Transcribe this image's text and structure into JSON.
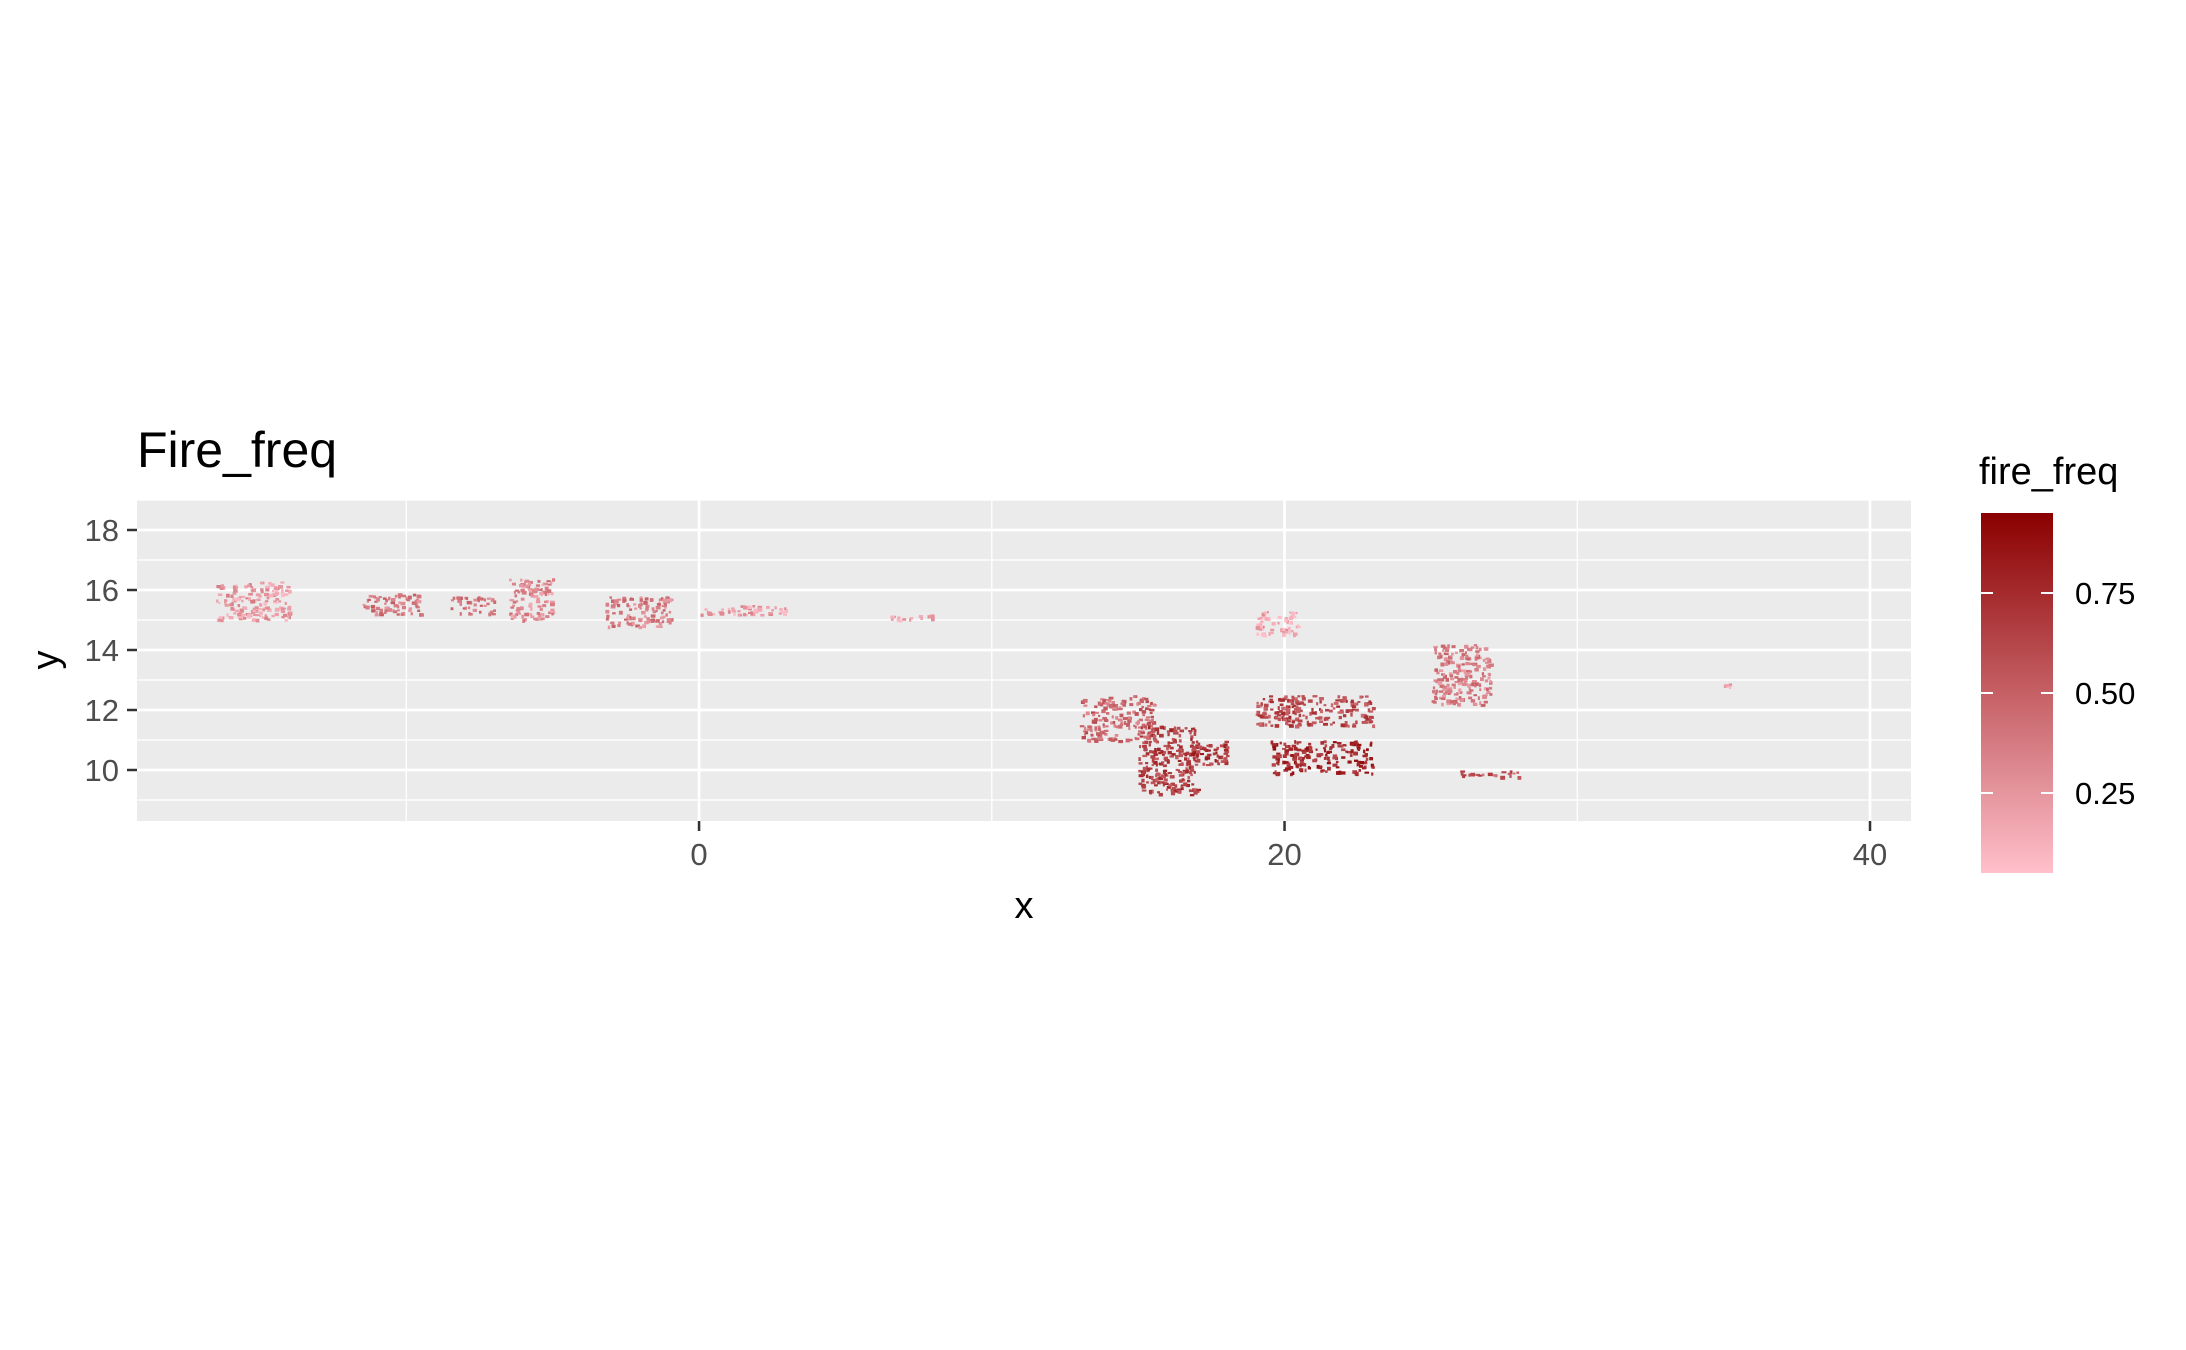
{
  "chart_data": {
    "type": "heatmap",
    "title": "Fire_freq",
    "xlabel": "x",
    "ylabel": "y",
    "xlim": [
      -19.2,
      41.4
    ],
    "ylim": [
      8.3,
      19.0
    ],
    "x_ticks": [
      0,
      20,
      40
    ],
    "x_tick_labels": [
      "0",
      "20",
      "40"
    ],
    "y_ticks": [
      10,
      12,
      14,
      16,
      18
    ],
    "y_tick_labels": [
      "10",
      "12",
      "14",
      "16",
      "18"
    ],
    "grid": true,
    "panel_background": "#ebebeb",
    "legend": {
      "title": "fire_freq",
      "placement": "right",
      "range": [
        0.05,
        0.95
      ],
      "breaks": [
        0.25,
        0.5,
        0.75
      ],
      "break_labels": [
        "0.25",
        "0.50",
        "0.75"
      ],
      "low_color": "#ffc0cb",
      "high_color": "#8b0000"
    },
    "regions": [
      {
        "x": [
          -16.5,
          -14.0
        ],
        "y": [
          15.0,
          16.3
        ],
        "value": 0.22
      },
      {
        "x": [
          -11.5,
          -9.5
        ],
        "y": [
          15.2,
          15.9
        ],
        "value": 0.38
      },
      {
        "x": [
          -8.5,
          -7.0
        ],
        "y": [
          15.2,
          15.8
        ],
        "value": 0.35
      },
      {
        "x": [
          -6.5,
          -5.0
        ],
        "y": [
          15.0,
          16.4
        ],
        "value": 0.3
      },
      {
        "x": [
          -3.2,
          -1.0
        ],
        "y": [
          14.8,
          15.8
        ],
        "value": 0.35
      },
      {
        "x": [
          0.0,
          3.0
        ],
        "y": [
          15.2,
          15.5
        ],
        "value": 0.2
      },
      {
        "x": [
          6.5,
          8.0
        ],
        "y": [
          15.0,
          15.2
        ],
        "value": 0.18
      },
      {
        "x": [
          13.0,
          15.5
        ],
        "y": [
          11.0,
          12.5
        ],
        "value": 0.45
      },
      {
        "x": [
          15.0,
          17.0
        ],
        "y": [
          9.2,
          11.5
        ],
        "value": 0.65
      },
      {
        "x": [
          16.5,
          18.0
        ],
        "y": [
          10.2,
          11.0
        ],
        "value": 0.7
      },
      {
        "x": [
          19.0,
          20.5
        ],
        "y": [
          14.5,
          15.3
        ],
        "value": 0.15
      },
      {
        "x": [
          19.0,
          23.0
        ],
        "y": [
          11.5,
          12.5
        ],
        "value": 0.6
      },
      {
        "x": [
          19.5,
          23.0
        ],
        "y": [
          9.9,
          11.0
        ],
        "value": 0.75
      },
      {
        "x": [
          25.0,
          27.0
        ],
        "y": [
          12.2,
          14.2
        ],
        "value": 0.35
      },
      {
        "x": [
          26.0,
          28.0
        ],
        "y": [
          9.8,
          10.0
        ],
        "value": 0.55
      },
      {
        "x": [
          35.0,
          35.2
        ],
        "y": [
          12.8,
          12.9
        ],
        "value": 0.2
      }
    ]
  }
}
